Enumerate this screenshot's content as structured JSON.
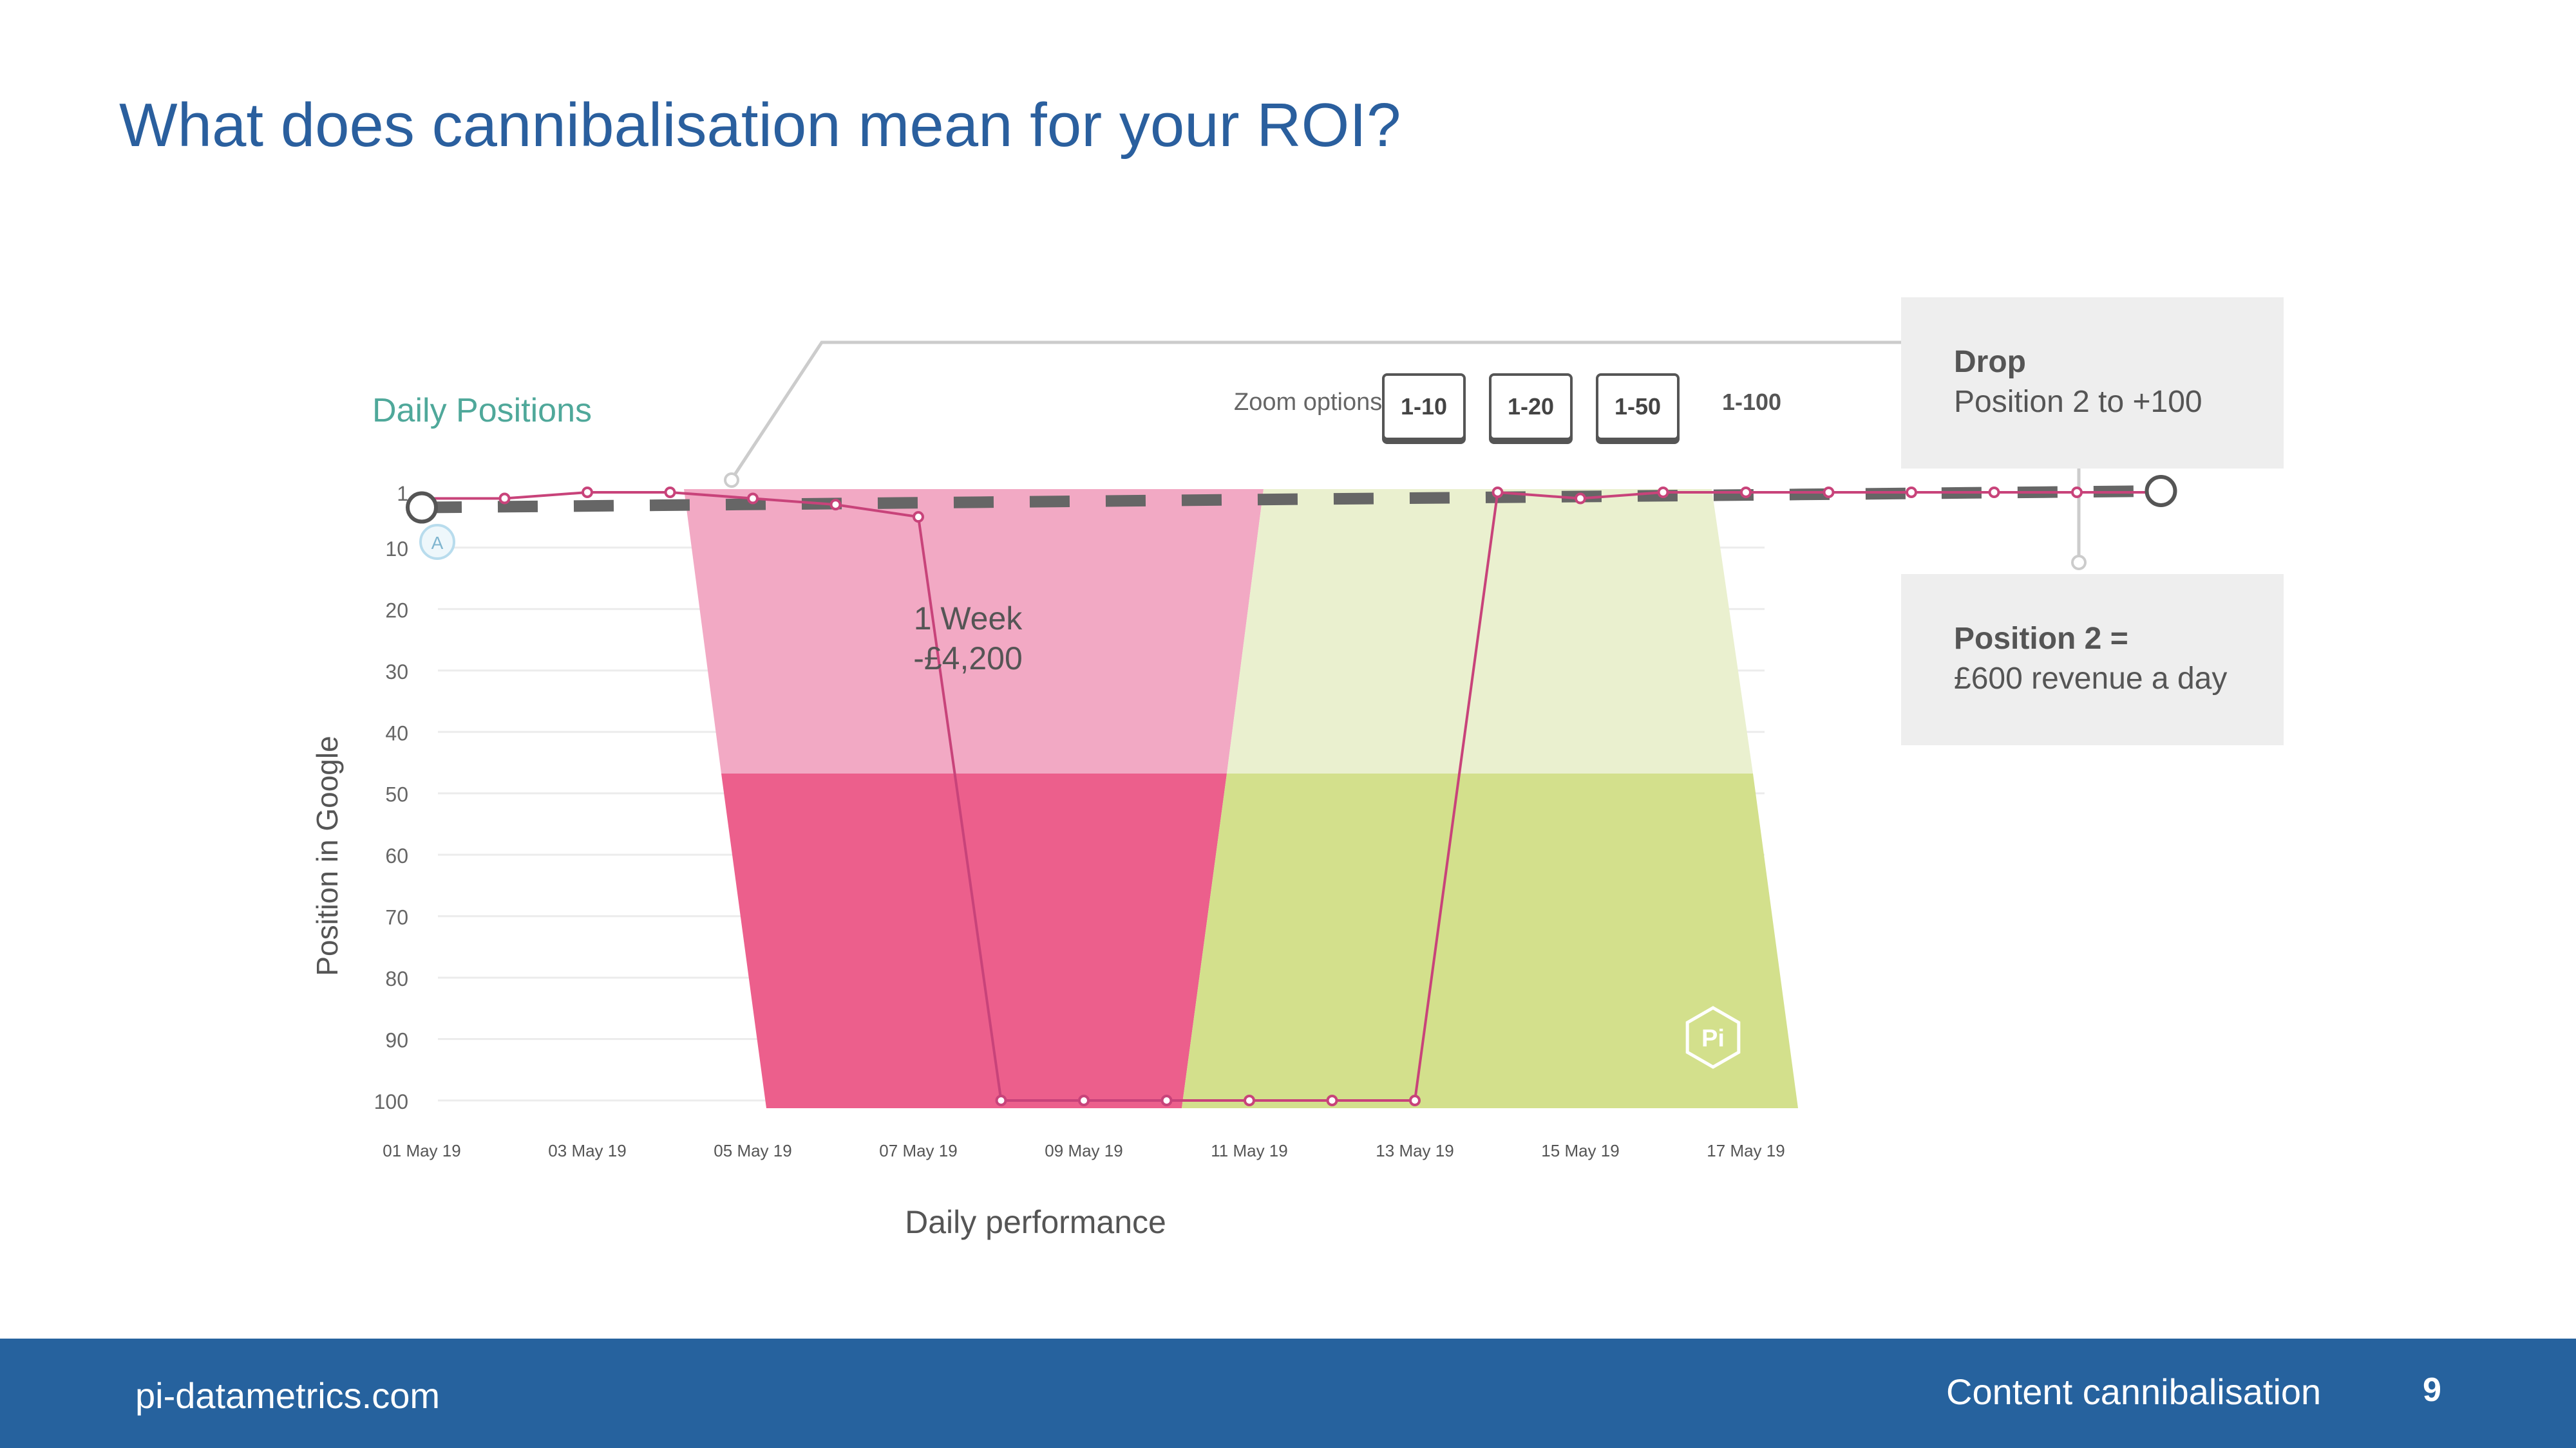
{
  "slide": {
    "title": "What does cannibalisation mean for your ROI?"
  },
  "chart_header": {
    "title": "Daily Positions",
    "zoom_label": "Zoom options",
    "zoom_buttons": [
      "1-10",
      "1-20",
      "1-50",
      "1-100"
    ]
  },
  "callouts": {
    "drop": {
      "title": "Drop",
      "text": "Position 2 to +100"
    },
    "revenue": {
      "title": "Position 2 =",
      "text": "£600 revenue a day"
    }
  },
  "annotation": {
    "line1": "1 Week",
    "line2": "-£4,200"
  },
  "marker_label": "A",
  "logo_text": "Pi",
  "footer": {
    "website": "pi-datametrics.com",
    "section": "Content cannibalisation",
    "page": "9"
  },
  "colors": {
    "title": "#2a5f9e",
    "footer_bg": "#26629e",
    "drop_zone": "#ec5f8c",
    "drop_zone_light": "#f2a9c4",
    "recovery_zone": "#d3e08c",
    "recovery_zone_light": "#eaf0cf",
    "series_line": "#c8437a",
    "dashed_line": "#666666"
  },
  "chart_data": {
    "type": "line",
    "xlabel": "Daily performance",
    "ylabel": "Position in Google",
    "x_tick_labels": [
      "01 May 19",
      "03 May 19",
      "05 May 19",
      "07 May 19",
      "09 May 19",
      "11 May 19",
      "13 May 19",
      "15 May 19",
      "17 May 19"
    ],
    "y_tick_labels": [
      "1",
      "10",
      "20",
      "30",
      "40",
      "50",
      "60",
      "70",
      "80",
      "90",
      "100"
    ],
    "ylim": [
      100,
      1
    ],
    "y_inverted": true,
    "series": [
      {
        "x": [
          "01 May 19",
          "02 May 19",
          "03 May 19",
          "04 May 19",
          "05 May 19",
          "06 May 19",
          "07 May 19",
          "08 May 19",
          "09 May 19",
          "10 May 19",
          "11 May 19",
          "12 May 19",
          "13 May 19",
          "14 May 19",
          "15 May 19",
          "16 May 19",
          "17 May 19",
          "18 May 19",
          "19 May 19",
          "20 May 19",
          "21 May 19",
          "22 May 19"
        ],
        "y": [
          2,
          2,
          1,
          1,
          2,
          3,
          5,
          100,
          100,
          100,
          100,
          100,
          100,
          1,
          2,
          1,
          1,
          1,
          1,
          1,
          1,
          1
        ]
      }
    ],
    "reference_line": {
      "style": "dashed",
      "y_start": 2,
      "y_end": 1
    }
  }
}
